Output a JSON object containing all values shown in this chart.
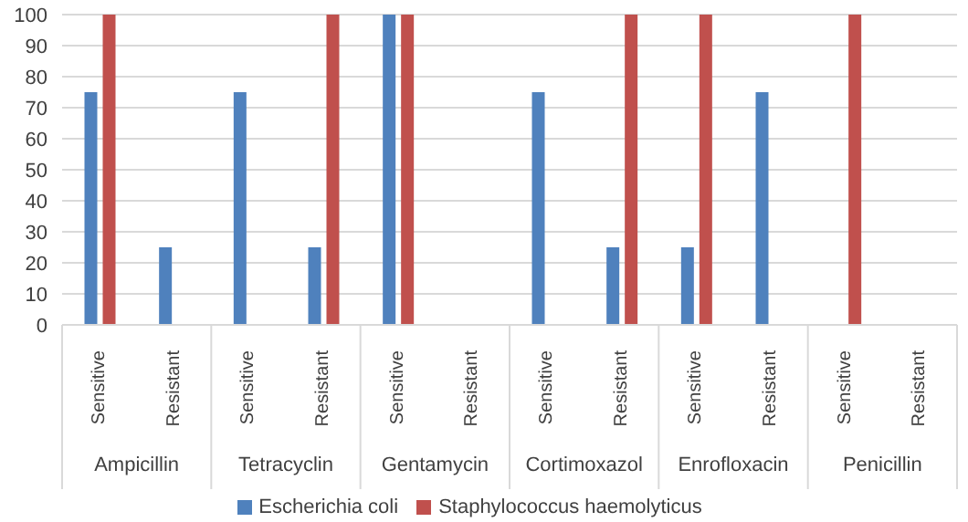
{
  "chart_data": {
    "type": "bar",
    "categories": [
      "Sensitive",
      "Resistant",
      "Sensitive",
      "Resistant",
      "Sensitive",
      "Resistant",
      "Sensitive",
      "Resistant",
      "Sensitive",
      "Resistant",
      "Sensitive",
      "Resistant"
    ],
    "annotations": [
      "Ampicillin",
      "Tetracyclin",
      "Gentamycin",
      "Cortimoxazol",
      "Enrofloxacin",
      "Penicillin"
    ],
    "series": [
      {
        "name": "Escherichia coli",
        "color": "#4f81bd",
        "values": [
          75,
          25,
          75,
          25,
          100,
          0,
          75,
          25,
          25,
          75,
          0,
          0
        ]
      },
      {
        "name": "Staphylococcus haemolyticus",
        "color": "#c0504d",
        "values": [
          100,
          0,
          0,
          100,
          100,
          0,
          0,
          100,
          100,
          0,
          100,
          0
        ]
      }
    ],
    "ylim": [
      0,
      100
    ],
    "yticks": [
      0,
      10,
      20,
      30,
      40,
      50,
      60,
      70,
      80,
      90,
      100
    ],
    "grid": "y",
    "legend": "bottom"
  }
}
